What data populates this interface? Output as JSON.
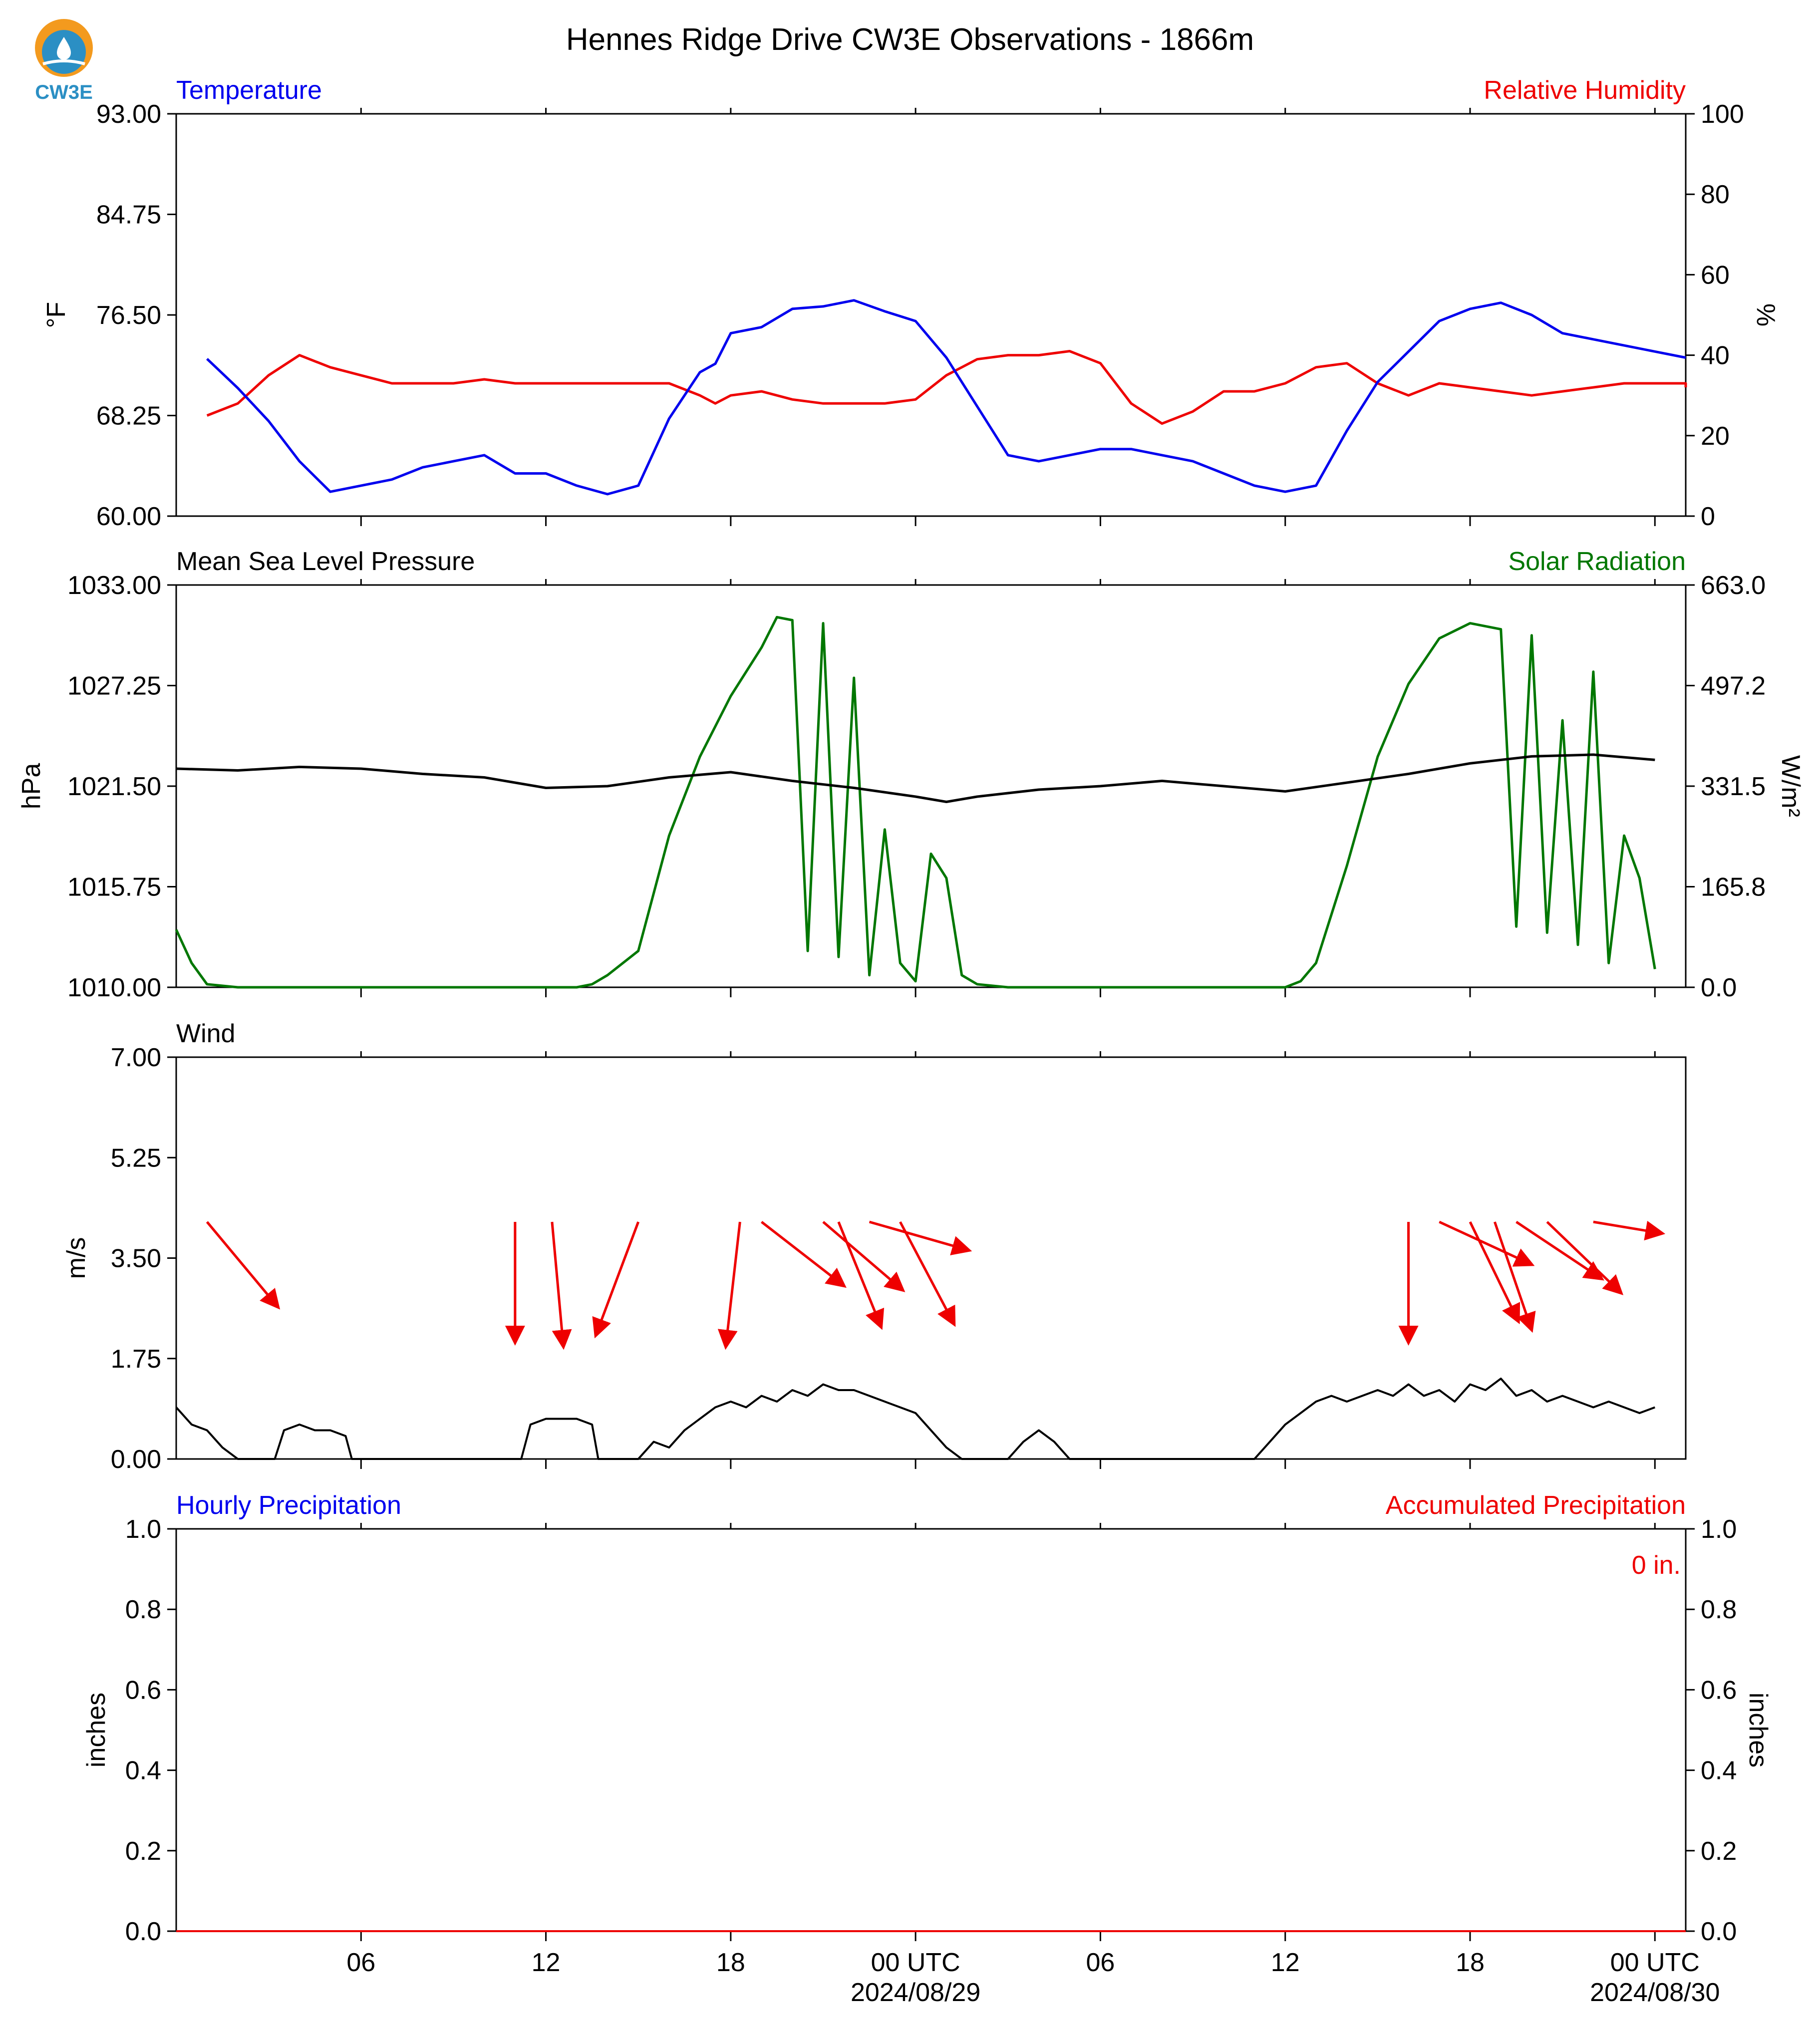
{
  "title": "Hennes Ridge Drive CW3E Observations - 1866m",
  "logo_text": "CW3E",
  "colors": {
    "temperature": "#0000ee",
    "humidity": "#ee0000",
    "pressure": "#000000",
    "solar": "#007700",
    "wind_speed": "#000000",
    "wind_arrow": "#ee0000",
    "logo_orange": "#f39a1e",
    "logo_blue": "#2b8fc4"
  },
  "x_axis": {
    "ticks": [
      "06",
      "12",
      "18",
      "00 UTC",
      "06",
      "12",
      "18",
      "00 UTC"
    ],
    "dates": [
      "2024/08/29",
      "2024/08/30"
    ]
  },
  "chart_data": [
    {
      "type": "line",
      "panel": "temperature-humidity",
      "left_label": "Temperature",
      "right_label": "Relative Humidity",
      "ylabel": "°F",
      "y2label": "%",
      "ylim": [
        60,
        93
      ],
      "y2lim": [
        0,
        100
      ],
      "yticks": [
        "60.00",
        "68.25",
        "76.50",
        "84.75",
        "93.00"
      ],
      "y2ticks": [
        "0",
        "20",
        "40",
        "60",
        "80",
        "100"
      ],
      "x_hours": [
        1,
        2,
        3,
        4,
        5,
        6,
        7,
        8,
        9,
        10,
        11,
        12,
        13,
        14,
        15,
        16,
        17,
        17.5,
        18,
        19,
        20,
        21,
        22,
        23,
        24,
        25,
        26,
        27,
        28,
        29,
        30,
        31,
        32,
        33,
        34,
        35,
        36,
        37,
        38,
        39,
        40,
        41,
        42,
        43,
        44,
        45,
        46,
        47,
        48,
        49,
        49
      ],
      "series": [
        {
          "name": "Temperature",
          "values": [
            72.9,
            70.5,
            67.8,
            64.5,
            62.0,
            62.5,
            63.0,
            64.0,
            64.5,
            65.0,
            63.5,
            63.5,
            62.5,
            61.8,
            62.5,
            68.0,
            71.8,
            72.5,
            75.0,
            75.5,
            77.0,
            77.2,
            77.7,
            76.8,
            76.0,
            73.0,
            69.0,
            65.0,
            64.5,
            65.0,
            65.5,
            65.5,
            65.0,
            64.5,
            63.5,
            62.5,
            62.0,
            62.5,
            67.0,
            71.0,
            73.5,
            76.0,
            77.0,
            77.5,
            76.5,
            75.0,
            74.5,
            74.0,
            73.5,
            73.0,
            73.0
          ]
        },
        {
          "name": "Relative Humidity",
          "values": [
            25,
            28,
            35,
            40,
            37,
            35,
            33,
            33,
            33,
            34,
            33,
            33,
            33,
            33,
            33,
            33,
            30,
            28,
            30,
            31,
            29,
            28,
            28,
            28,
            29,
            35,
            39,
            40,
            40,
            41,
            38,
            28,
            23,
            26,
            31,
            31,
            33,
            37,
            38,
            33,
            30,
            33,
            32,
            31,
            30,
            31,
            32,
            33,
            33,
            33,
            32
          ]
        }
      ]
    },
    {
      "type": "line",
      "panel": "pressure-solar",
      "left_label": "Mean Sea Level Pressure",
      "right_label": "Solar Radiation",
      "ylabel": "hPa",
      "y2label": "W/m²",
      "ylim": [
        1010.0,
        1033.0
      ],
      "y2lim": [
        0.0,
        663.0
      ],
      "yticks": [
        "1010.00",
        "1015.75",
        "1021.50",
        "1027.25",
        "1033.00"
      ],
      "y2ticks": [
        "0.0",
        "165.8",
        "331.5",
        "497.2",
        "663.0"
      ],
      "pressure_x_hours": [
        0,
        2,
        4,
        6,
        8,
        10,
        12,
        14,
        16,
        18,
        20,
        22,
        24,
        25,
        26,
        28,
        30,
        32,
        34,
        36,
        38,
        40,
        42,
        44,
        46,
        48
      ],
      "pressure_values": [
        1022.5,
        1022.4,
        1022.6,
        1022.5,
        1022.2,
        1022.0,
        1021.4,
        1021.5,
        1022.0,
        1022.3,
        1021.8,
        1021.4,
        1020.9,
        1020.6,
        1020.9,
        1021.3,
        1021.5,
        1021.8,
        1021.5,
        1021.2,
        1021.7,
        1022.2,
        1022.8,
        1023.2,
        1023.3,
        1023.0
      ],
      "solar_x_hours": [
        0,
        0.5,
        1,
        2,
        4,
        6,
        8,
        10,
        12,
        13,
        13.5,
        14,
        15,
        16,
        17,
        18,
        19,
        19.5,
        20,
        20.5,
        21,
        21.5,
        22,
        22.5,
        23,
        23.5,
        24,
        24.5,
        25,
        25.5,
        26,
        27,
        30,
        34,
        36,
        36.5,
        37,
        38,
        39,
        40,
        41,
        42,
        43,
        43.5,
        44,
        44.5,
        45,
        45.5,
        46,
        46.5,
        47,
        47.5,
        48
      ],
      "solar_values": [
        95,
        40,
        5,
        0,
        0,
        0,
        0,
        0,
        0,
        0,
        5,
        20,
        60,
        250,
        380,
        480,
        560,
        610,
        605,
        60,
        600,
        50,
        510,
        20,
        260,
        40,
        10,
        220,
        180,
        20,
        5,
        0,
        0,
        0,
        0,
        10,
        40,
        200,
        380,
        500,
        575,
        600,
        590,
        100,
        580,
        90,
        440,
        70,
        520,
        40,
        250,
        180,
        30
      ]
    },
    {
      "type": "line",
      "panel": "wind",
      "label": "Wind",
      "ylabel": "m/s",
      "ylim": [
        0.0,
        7.0
      ],
      "yticks": [
        "0.00",
        "1.75",
        "3.50",
        "5.25",
        "7.00"
      ],
      "x_hours": [
        0,
        0.5,
        1,
        1.5,
        2,
        3,
        3.2,
        3.5,
        4,
        4.5,
        5,
        5.5,
        5.7,
        6,
        11,
        11.2,
        11.5,
        12,
        12.5,
        13,
        13.5,
        13.7,
        14,
        15,
        15.5,
        16,
        16.5,
        17,
        17.5,
        18,
        18.5,
        19,
        19.5,
        20,
        20.5,
        21,
        21.5,
        22,
        22.5,
        23,
        23.5,
        24,
        24.5,
        25,
        25.5,
        26,
        26.5,
        27,
        27.5,
        28,
        28.5,
        29,
        30,
        35,
        35.5,
        36,
        36.5,
        37,
        37.5,
        38,
        38.5,
        39,
        39.5,
        40,
        40.5,
        41,
        41.5,
        42,
        42.5,
        43,
        43.5,
        44,
        44.5,
        45,
        45.5,
        46,
        46.5,
        47,
        47.5,
        48
      ],
      "values": [
        0.9,
        0.6,
        0.5,
        0.2,
        0.0,
        0.0,
        0.0,
        0.5,
        0.6,
        0.5,
        0.5,
        0.4,
        0.0,
        0.0,
        0.0,
        0.0,
        0.6,
        0.7,
        0.7,
        0.7,
        0.6,
        0.0,
        0.0,
        0.0,
        0.3,
        0.2,
        0.5,
        0.7,
        0.9,
        1.0,
        0.9,
        1.1,
        1.0,
        1.2,
        1.1,
        1.3,
        1.2,
        1.2,
        1.1,
        1.0,
        0.9,
        0.8,
        0.5,
        0.2,
        0.0,
        0.0,
        0.0,
        0.0,
        0.3,
        0.5,
        0.3,
        0.0,
        0.0,
        0.0,
        0.3,
        0.6,
        0.8,
        1.0,
        1.1,
        1.0,
        1.1,
        1.2,
        1.1,
        1.3,
        1.1,
        1.2,
        1.0,
        1.3,
        1.2,
        1.4,
        1.1,
        1.2,
        1.0,
        1.1,
        1.0,
        0.9,
        1.0,
        0.9,
        0.8,
        0.9
      ],
      "arrows": [
        {
          "hour": 1.0,
          "dx": 50,
          "dy": 60
        },
        {
          "hour": 11.0,
          "dx": 0,
          "dy": 85
        },
        {
          "hour": 12.2,
          "dx": 8,
          "dy": 88
        },
        {
          "hour": 15.0,
          "dx": -30,
          "dy": 80
        },
        {
          "hour": 18.3,
          "dx": -10,
          "dy": 88
        },
        {
          "hour": 19.0,
          "dx": 58,
          "dy": 45
        },
        {
          "hour": 21.0,
          "dx": 56,
          "dy": 48
        },
        {
          "hour": 21.5,
          "dx": 30,
          "dy": 74
        },
        {
          "hour": 22.5,
          "dx": 70,
          "dy": 20
        },
        {
          "hour": 23.5,
          "dx": 38,
          "dy": 72
        },
        {
          "hour": 40.0,
          "dx": 0,
          "dy": 85
        },
        {
          "hour": 41.0,
          "dx": 65,
          "dy": 30
        },
        {
          "hour": 42.0,
          "dx": 34,
          "dy": 70
        },
        {
          "hour": 42.8,
          "dx": 26,
          "dy": 76
        },
        {
          "hour": 43.5,
          "dx": 60,
          "dy": 40
        },
        {
          "hour": 44.5,
          "dx": 52,
          "dy": 50
        },
        {
          "hour": 46.0,
          "dx": 48,
          "dy": 8
        }
      ]
    },
    {
      "type": "bar",
      "panel": "precipitation",
      "left_label": "Hourly Precipitation",
      "right_label": "Accumulated Precipitation",
      "ylabel": "inches",
      "y2label": "inches",
      "ylim": [
        0.0,
        1.0
      ],
      "y2lim": [
        0.0,
        1.0
      ],
      "yticks": [
        "0.0",
        "0.2",
        "0.4",
        "0.6",
        "0.8",
        "1.0"
      ],
      "y2ticks": [
        "0.0",
        "0.2",
        "0.4",
        "0.6",
        "0.8",
        "1.0"
      ],
      "hourly_values": [],
      "accumulated_total": 0,
      "accumulated_label": "0 in."
    }
  ]
}
